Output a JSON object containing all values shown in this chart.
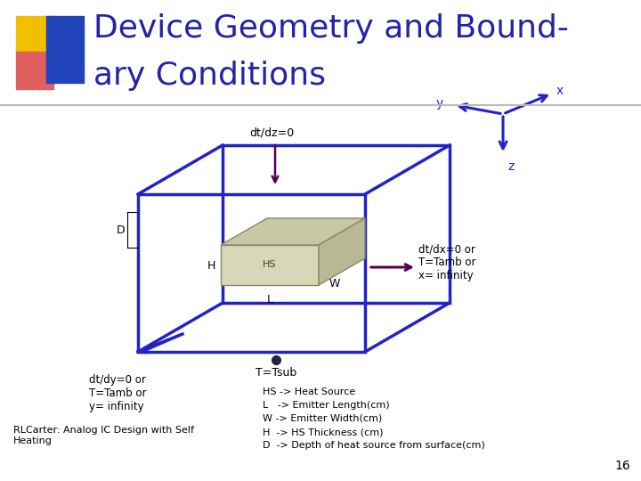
{
  "title_line1": "Device Geometry and Bound-",
  "title_line2": "ary Conditions",
  "title_color": "#2222aa",
  "title_fontsize": 26,
  "bg_color": "#ffffff",
  "box_color": "#2222cc",
  "hs_face_color": "#d8d8b8",
  "hs_top_color": "#c8c8a4",
  "hs_side_color": "#b8b894",
  "hs_edge_color": "#888866",
  "arrow_color": "#2222cc",
  "side_arrow_color": "#550055",
  "text_color": "#000000",
  "label_font": "Comic Sans MS",
  "page_number": "16",
  "footer_left": "RLCarter: Analog IC Design with Self\nHeating",
  "dt_dz": "dt/dz=0",
  "dt_dx": "dt/dx=0 or\nT=Tamb or\nx= infinity",
  "dt_dy": "dt/dy=0 or\nT=Tamb or\ny= infinity",
  "T_tsub": "T=Tsub",
  "legend_lines": [
    "HS -> Heat Source",
    "L   -> Emitter Length(cm)",
    "W -> Emitter Width(cm)",
    "H  -> HS Thickness (cm)",
    "D  -> Depth of heat source from surface(cm)"
  ],
  "labels": {
    "D": "D",
    "H": "H",
    "L": "L",
    "W": "W",
    "HS": "HS",
    "x": "x",
    "y": "y",
    "z": "z"
  }
}
